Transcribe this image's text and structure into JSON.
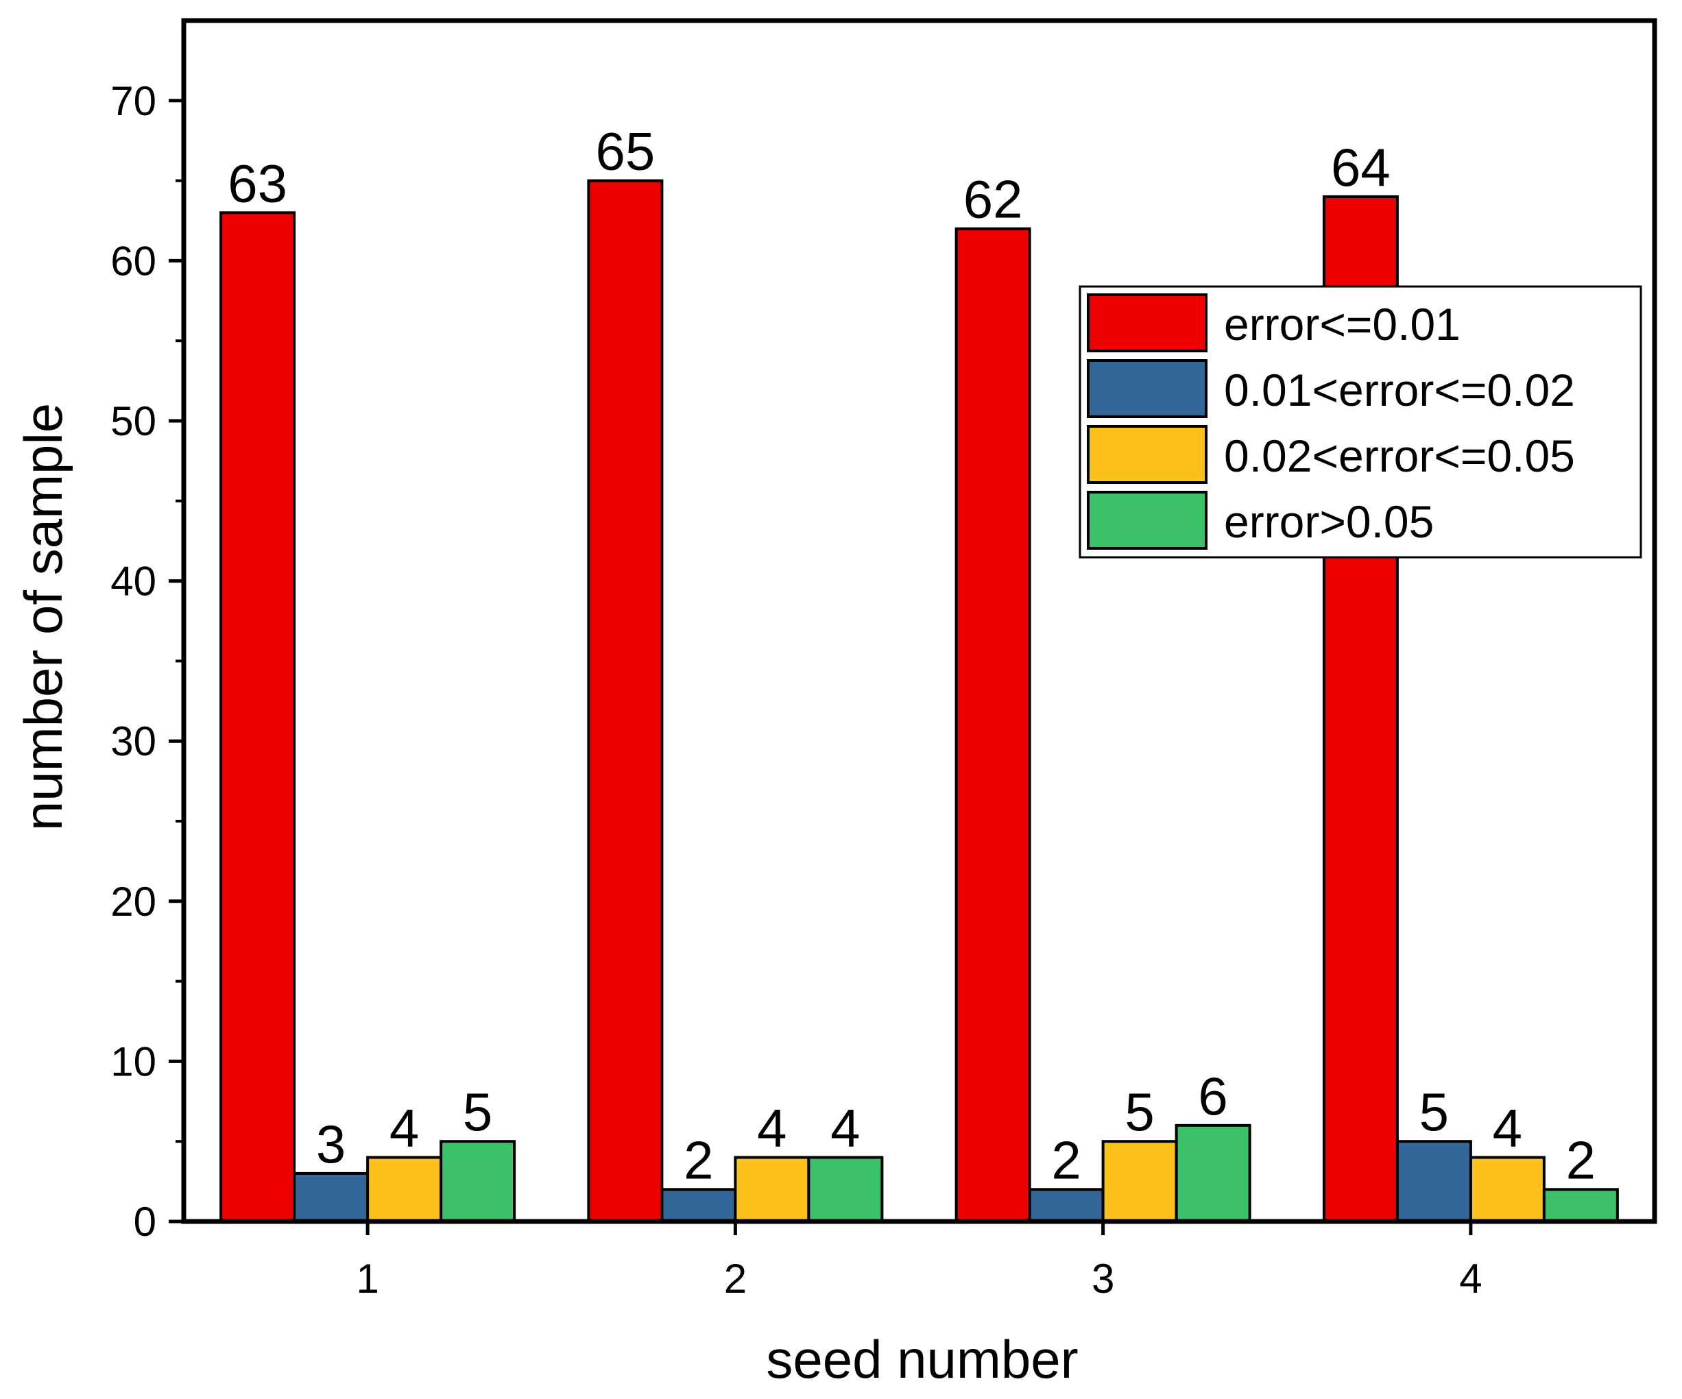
{
  "chart_data": {
    "type": "bar",
    "xlabel": "seed number",
    "ylabel": "number of sample",
    "ylim": [
      0,
      75
    ],
    "yticks": [
      0,
      10,
      20,
      30,
      40,
      50,
      60,
      70
    ],
    "categories": [
      "1",
      "2",
      "3",
      "4"
    ],
    "series": [
      {
        "name": "error<=0.01",
        "color": "#ee0000",
        "values": [
          63,
          65,
          62,
          64
        ]
      },
      {
        "name": "0.01<error<=0.02",
        "color": "#336699",
        "values": [
          3,
          2,
          2,
          5
        ]
      },
      {
        "name": "0.02<error<=0.05",
        "color": "#fcc11a",
        "values": [
          4,
          4,
          5,
          4
        ]
      },
      {
        "name": "error>0.05",
        "color": "#3cc16b",
        "values": [
          5,
          4,
          6,
          2
        ]
      }
    ],
    "legend_position": "top-right",
    "grid": false
  }
}
